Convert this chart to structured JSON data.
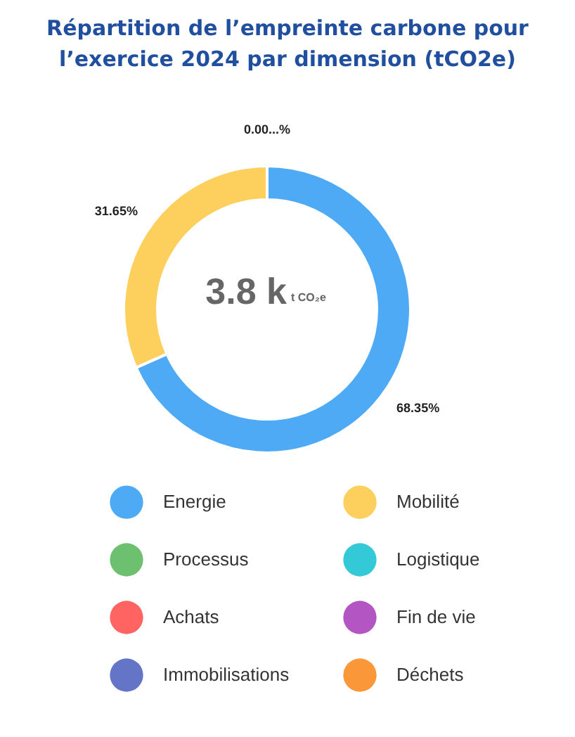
{
  "chart_data": {
    "type": "donut",
    "title": "Répartition de l’empreinte carbone pour l’exercice 2024 par dimension (tCO2e)",
    "categories": [
      "Energie",
      "Mobilité",
      "Processus",
      "Logistique",
      "Achats",
      "Fin de vie",
      "Immobilisations",
      "Déchets"
    ],
    "values": [
      68.35,
      31.65,
      0,
      0,
      0,
      0,
      0,
      0
    ],
    "value_labels": [
      "68.35%",
      "31.65%",
      "0.00...%",
      null,
      null,
      null,
      null,
      null
    ],
    "colors": [
      "#4eaaf5",
      "#fdd05e",
      "#6cc070",
      "#33c9d6",
      "#ff6362",
      "#b356c4",
      "#6474c6",
      "#fa9738"
    ],
    "annotations": [
      "3.8 k",
      "t CO₂e"
    ],
    "legend": "bottom"
  }
}
